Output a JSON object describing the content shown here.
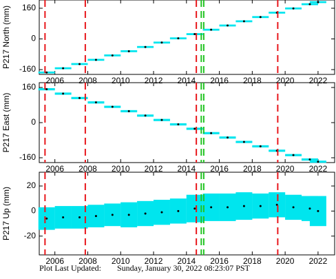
{
  "chart_data": [
    {
      "type": "errorbar",
      "ylabel": "P217 North (mm)",
      "color": "#00e5ee",
      "point_color": "#000000",
      "x": [
        2005.5,
        2006.5,
        2007.5,
        2008.5,
        2009.5,
        2010.5,
        2011.5,
        2012.5,
        2013.5,
        2014.5,
        2015.5,
        2016.5,
        2017.5,
        2018.5,
        2019.5,
        2020.5,
        2021.5,
        2022.0
      ],
      "values": [
        -175,
        -153,
        -131,
        -109,
        -86,
        -64,
        -42,
        -19,
        3,
        25,
        48,
        70,
        92,
        114,
        137,
        159,
        181,
        192
      ],
      "errors": [
        5,
        5,
        5,
        5,
        5,
        5,
        5,
        5,
        5,
        5,
        5,
        5,
        5,
        5,
        5,
        5,
        5,
        5
      ],
      "xlim": [
        2005.05,
        2023.05
      ],
      "xticks": [
        2006,
        2008,
        2010,
        2012,
        2014,
        2016,
        2018,
        2020,
        2022
      ],
      "ylim": [
        -185,
        203
      ],
      "yticks": [
        -160,
        0,
        160
      ],
      "events": [
        {
          "x": 2005.4,
          "color": "#e8161b"
        },
        {
          "x": 2007.85,
          "color": "#e8161b"
        },
        {
          "x": 2014.6,
          "color": "#e8161b"
        },
        {
          "x": 2014.9,
          "color": "#22c422"
        },
        {
          "x": 2015.05,
          "color": "#22c422"
        },
        {
          "x": 2019.55,
          "color": "#e8161b"
        }
      ]
    },
    {
      "type": "errorbar",
      "ylabel": "P217 East (mm)",
      "color": "#00e5ee",
      "point_color": "#000000",
      "x": [
        2005.5,
        2006.5,
        2007.5,
        2008.5,
        2009.5,
        2010.5,
        2011.5,
        2012.5,
        2013.5,
        2014.5,
        2015.5,
        2016.5,
        2017.5,
        2018.5,
        2019.5,
        2020.5,
        2021.5,
        2022.0
      ],
      "values": [
        152,
        132,
        112,
        92,
        72,
        52,
        32,
        12,
        -8,
        -28,
        -48,
        -68,
        -88,
        -108,
        -128,
        -148,
        -168,
        -178
      ],
      "errors": [
        5,
        5,
        5,
        5,
        5,
        5,
        5,
        5,
        5,
        5,
        5,
        5,
        5,
        5,
        5,
        5,
        5,
        5
      ],
      "xlim": [
        2005.05,
        2023.05
      ],
      "xticks": [
        2006,
        2008,
        2010,
        2012,
        2014,
        2016,
        2018,
        2020,
        2022
      ],
      "ylim": [
        -182,
        182
      ],
      "yticks": [
        -160,
        0,
        160
      ],
      "events": [
        {
          "x": 2005.4,
          "color": "#e8161b"
        },
        {
          "x": 2007.85,
          "color": "#e8161b"
        },
        {
          "x": 2014.6,
          "color": "#e8161b"
        },
        {
          "x": 2014.9,
          "color": "#22c422"
        },
        {
          "x": 2015.05,
          "color": "#22c422"
        },
        {
          "x": 2019.55,
          "color": "#e8161b"
        }
      ]
    },
    {
      "type": "errorbar",
      "ylabel": "P217 Up (mm)",
      "color": "#00e5ee",
      "point_color": "#000000",
      "x": [
        2005.5,
        2006.5,
        2007.5,
        2008.5,
        2009.5,
        2010.5,
        2011.5,
        2012.5,
        2013.5,
        2014.5,
        2015.5,
        2016.5,
        2017.5,
        2018.5,
        2019.5,
        2020.5,
        2021.5,
        2022.0
      ],
      "values": [
        -6,
        -5,
        -5,
        -4,
        -3,
        -3,
        -2,
        -1,
        0,
        2,
        3,
        3,
        4,
        4,
        5,
        3,
        2,
        0
      ],
      "errors": [
        9,
        9,
        9,
        9,
        9,
        10,
        10,
        10,
        10,
        11,
        11,
        11,
        11,
        10,
        10,
        10,
        10,
        12
      ],
      "xlim": [
        2005.05,
        2023.05
      ],
      "xticks": [
        2006,
        2008,
        2010,
        2012,
        2014,
        2016,
        2018,
        2020,
        2022
      ],
      "ylim": [
        -35,
        31
      ],
      "yticks": [
        -20,
        0,
        20
      ],
      "events": [
        {
          "x": 2005.4,
          "color": "#e8161b"
        },
        {
          "x": 2007.85,
          "color": "#e8161b"
        },
        {
          "x": 2014.6,
          "color": "#e8161b"
        },
        {
          "x": 2014.9,
          "color": "#22c422"
        },
        {
          "x": 2015.05,
          "color": "#22c422"
        },
        {
          "x": 2019.55,
          "color": "#e8161b"
        }
      ]
    }
  ],
  "footer": {
    "label": "Plot Last Updated:",
    "value": "Sunday, January 30, 2022 08:23:07 PST"
  }
}
